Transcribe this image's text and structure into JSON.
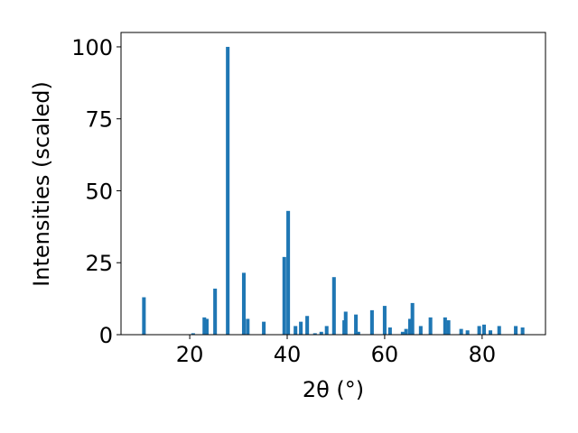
{
  "chart_data": {
    "type": "bar",
    "xlabel": "2θ (°)",
    "ylabel": "Intensities (scaled)",
    "x": [
      10.6,
      20.7,
      23.0,
      23.5,
      25.2,
      27.8,
      31.1,
      31.9,
      35.2,
      39.4,
      40.2,
      41.7,
      42.8,
      44.1,
      45.7,
      47.0,
      48.1,
      49.6,
      51.7,
      52.0,
      54.1,
      54.6,
      57.4,
      60.0,
      61.1,
      63.7,
      64.4,
      65.2,
      65.7,
      67.4,
      69.4,
      72.4,
      73.1,
      75.7,
      77.0,
      79.4,
      80.4,
      81.7,
      83.5,
      86.9,
      88.3
    ],
    "values": [
      13,
      0.5,
      6,
      5.5,
      16,
      100,
      21.5,
      5.5,
      4.5,
      27,
      43,
      3,
      4.5,
      6.5,
      0.5,
      1,
      3,
      20,
      5,
      8,
      7,
      1,
      8.5,
      10,
      2.5,
      1,
      2,
      5.5,
      11,
      3,
      6,
      6,
      5,
      2,
      1.5,
      3,
      3.5,
      1.5,
      3,
      3,
      2.5
    ],
    "color": "#1f77b4",
    "xlim": [
      5.9,
      93.0
    ],
    "ylim": [
      0,
      105
    ],
    "xticks": [
      20,
      40,
      60,
      80
    ],
    "yticks": [
      0,
      25,
      50,
      75,
      100
    ]
  }
}
